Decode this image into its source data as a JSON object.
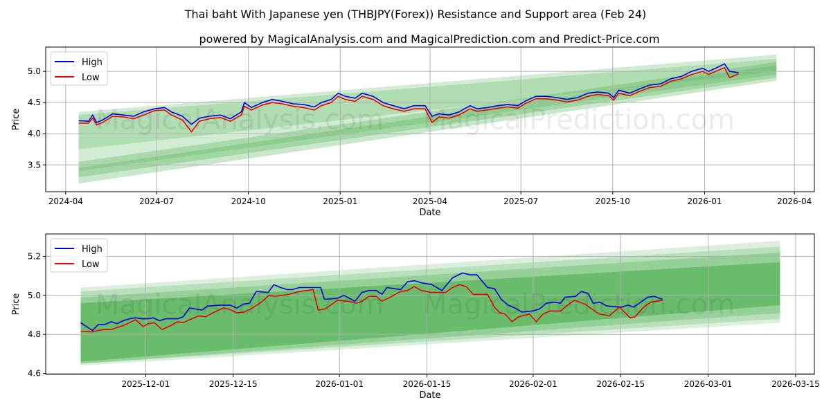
{
  "chart_data": [
    {
      "type": "line",
      "title": "Thai baht With Japanese yen (THBJPY(Forex)) Resistance and Support area (Feb 24)",
      "subtitle": "powered by MagicalAnalysis.com and MagicalPrediction.com and Predict-Price.com",
      "xlabel": "Date",
      "ylabel": "Price",
      "x_origin": "2024-04-01",
      "x_unit": "days since x_origin",
      "xlim": [
        -20,
        750
      ],
      "ylim": [
        3.07,
        5.39
      ],
      "grid": true,
      "legend": "top-left",
      "x_ticks": [
        {
          "label": "2024-04",
          "day": 0
        },
        {
          "label": "2024-07",
          "day": 91
        },
        {
          "label": "2024-10",
          "day": 183
        },
        {
          "label": "2025-01",
          "day": 275
        },
        {
          "label": "2025-04",
          "day": 365
        },
        {
          "label": "2025-07",
          "day": 456
        },
        {
          "label": "2025-10",
          "day": 548
        },
        {
          "label": "2026-01",
          "day": 640
        },
        {
          "label": "2026-04",
          "day": 730
        }
      ],
      "y_ticks": [
        {
          "label": "3.5",
          "value": 3.5
        },
        {
          "label": "4.0",
          "value": 4.0
        },
        {
          "label": "4.5",
          "value": 4.5
        },
        {
          "label": "5.0",
          "value": 5.0
        }
      ],
      "bands": {
        "x_range": [
          13,
          712
        ],
        "color": "#4caf50",
        "items": [
          {
            "top": [
              4.35,
              5.27
            ],
            "bottom": [
              3.75,
              5.0
            ],
            "opacity": 0.25
          },
          {
            "top": [
              4.3,
              5.2
            ],
            "bottom": [
              3.4,
              4.95
            ],
            "opacity": 0.25
          },
          {
            "top": [
              3.55,
              5.15
            ],
            "bottom": [
              3.2,
              4.85
            ],
            "opacity": 0.3
          },
          {
            "top": [
              3.45,
              5.1
            ],
            "bottom": [
              3.3,
              4.9
            ],
            "opacity": 0.3
          }
        ]
      },
      "series": [
        {
          "name": "High",
          "color": "#0000dd",
          "x": [
            13,
            23,
            27,
            31,
            37,
            47,
            58,
            68,
            78,
            89,
            99,
            106,
            117,
            126,
            134,
            144,
            155,
            165,
            176,
            179,
            186,
            197,
            207,
            217,
            228,
            238,
            249,
            256,
            266,
            273,
            280,
            290,
            297,
            308,
            318,
            328,
            339,
            349,
            360,
            367,
            374,
            384,
            394,
            405,
            412,
            422,
            433,
            443,
            453,
            460,
            471,
            481,
            492,
            502,
            513,
            523,
            533,
            544,
            549,
            554,
            565,
            575,
            585,
            596,
            606,
            617,
            627,
            638,
            644,
            651,
            660,
            665,
            674
          ],
          "values": [
            4.21,
            4.2,
            4.3,
            4.18,
            4.22,
            4.32,
            4.3,
            4.28,
            4.35,
            4.4,
            4.42,
            4.35,
            4.28,
            4.15,
            4.25,
            4.28,
            4.3,
            4.24,
            4.35,
            4.5,
            4.42,
            4.5,
            4.55,
            4.52,
            4.48,
            4.47,
            4.43,
            4.5,
            4.55,
            4.65,
            4.6,
            4.57,
            4.65,
            4.6,
            4.5,
            4.45,
            4.4,
            4.45,
            4.45,
            4.28,
            4.32,
            4.3,
            4.35,
            4.45,
            4.4,
            4.42,
            4.45,
            4.47,
            4.45,
            4.52,
            4.6,
            4.6,
            4.58,
            4.55,
            4.58,
            4.65,
            4.67,
            4.65,
            4.58,
            4.7,
            4.65,
            4.72,
            4.78,
            4.8,
            4.88,
            4.92,
            5.0,
            5.05,
            5.0,
            5.05,
            5.12,
            5.0,
            4.98
          ]
        },
        {
          "name": "Low",
          "color": "#ee0000",
          "x": [
            13,
            23,
            27,
            31,
            37,
            47,
            58,
            68,
            78,
            89,
            99,
            106,
            117,
            126,
            134,
            144,
            155,
            165,
            176,
            179,
            186,
            197,
            207,
            217,
            228,
            238,
            249,
            256,
            266,
            273,
            280,
            290,
            297,
            308,
            318,
            328,
            339,
            349,
            360,
            367,
            374,
            384,
            394,
            405,
            412,
            422,
            433,
            443,
            453,
            460,
            471,
            481,
            492,
            502,
            513,
            523,
            533,
            544,
            549,
            554,
            565,
            575,
            585,
            596,
            606,
            617,
            627,
            638,
            644,
            651,
            660,
            665,
            674
          ],
          "values": [
            4.17,
            4.17,
            4.25,
            4.14,
            4.18,
            4.28,
            4.27,
            4.24,
            4.3,
            4.37,
            4.38,
            4.3,
            4.22,
            4.03,
            4.2,
            4.24,
            4.26,
            4.2,
            4.3,
            4.44,
            4.38,
            4.46,
            4.5,
            4.48,
            4.44,
            4.42,
            4.38,
            4.45,
            4.5,
            4.6,
            4.55,
            4.52,
            4.6,
            4.55,
            4.45,
            4.4,
            4.36,
            4.4,
            4.4,
            4.18,
            4.27,
            4.25,
            4.3,
            4.4,
            4.36,
            4.38,
            4.41,
            4.43,
            4.41,
            4.48,
            4.56,
            4.56,
            4.54,
            4.51,
            4.54,
            4.6,
            4.63,
            4.61,
            4.54,
            4.65,
            4.61,
            4.68,
            4.74,
            4.76,
            4.84,
            4.88,
            4.95,
            5.0,
            4.95,
            5.0,
            5.06,
            4.9,
            4.96
          ]
        }
      ]
    },
    {
      "type": "line",
      "xlabel": "Date",
      "ylabel": "Price",
      "x_origin": "2025-12-01",
      "x_unit": "days since x_origin",
      "xlim": [
        -16,
        107
      ],
      "ylim": [
        4.595,
        5.315
      ],
      "grid": true,
      "legend": "top-left",
      "x_ticks": [
        {
          "label": "2025-12-01",
          "day": 0
        },
        {
          "label": "2025-12-15",
          "day": 14
        },
        {
          "label": "2026-01-01",
          "day": 31
        },
        {
          "label": "2026-01-15",
          "day": 45
        },
        {
          "label": "2026-02-01",
          "day": 62
        },
        {
          "label": "2026-02-15",
          "day": 76
        },
        {
          "label": "2026-03-01",
          "day": 90
        },
        {
          "label": "2026-03-15",
          "day": 104
        }
      ],
      "y_ticks": [
        {
          "label": "4.6",
          "value": 4.6
        },
        {
          "label": "4.8",
          "value": 4.8
        },
        {
          "label": "5.0",
          "value": 5.0
        },
        {
          "label": "5.2",
          "value": 5.2
        }
      ],
      "bands": {
        "x_range": [
          -10.4,
          101.5
        ],
        "color": "#4caf50",
        "items": [
          {
            "top": [
              5.04,
              5.28
            ],
            "bottom": [
              4.64,
              4.86
            ],
            "opacity": 0.2
          },
          {
            "top": [
              5.02,
              5.25
            ],
            "bottom": [
              4.65,
              4.88
            ],
            "opacity": 0.25
          },
          {
            "top": [
              4.99,
              5.22
            ],
            "bottom": [
              4.65,
              4.91
            ],
            "opacity": 0.3
          },
          {
            "top": [
              4.96,
              5.17
            ],
            "bottom": [
              4.66,
              4.95
            ],
            "opacity": 0.6
          }
        ]
      },
      "series": [
        {
          "name": "High",
          "color": "#0000dd",
          "x": [
            -10.4,
            -8.5,
            -7.6,
            -6.6,
            -5.5,
            -4.6,
            -3.6,
            -2.6,
            -1.6,
            -0.7,
            0.4,
            1.2,
            2.2,
            3.2,
            5.1,
            6.0,
            7.0,
            9.0,
            9.9,
            11.9,
            13.5,
            14.6,
            15.6,
            16.6,
            17.7,
            19.6,
            20.5,
            21.6,
            22.6,
            23.5,
            24.6,
            28.0,
            28.6,
            30.7,
            31.7,
            33.5,
            34.6,
            35.7,
            36.9,
            37.8,
            38.6,
            40.8,
            41.9,
            43.0,
            44.1,
            45.8,
            47.4,
            49.1,
            50.7,
            51.9,
            53.0,
            54.7,
            55.8,
            56.9,
            58.0,
            59.1,
            60.2,
            61.9,
            63.0,
            64.1,
            65.3,
            66.4,
            67.1,
            68.8,
            69.7,
            70.8,
            71.6,
            72.7,
            73.8,
            76.2,
            77.2,
            78.1,
            79.2,
            80.3,
            81.4,
            82.7
          ],
          "values": [
            4.86,
            4.82,
            4.85,
            4.85,
            4.865,
            4.855,
            4.87,
            4.88,
            4.885,
            4.88,
            4.88,
            4.885,
            4.87,
            4.88,
            4.88,
            4.89,
            4.935,
            4.925,
            4.945,
            4.95,
            4.95,
            4.935,
            4.955,
            4.96,
            5.02,
            5.015,
            5.055,
            5.04,
            5.03,
            5.03,
            5.04,
            5.04,
            4.98,
            4.985,
            5.0,
            4.97,
            5.015,
            5.025,
            5.025,
            5.005,
            5.04,
            5.03,
            5.07,
            5.075,
            5.065,
            5.055,
            5.025,
            5.09,
            5.115,
            5.105,
            5.105,
            5.04,
            5.035,
            4.98,
            4.95,
            4.935,
            4.915,
            4.92,
            4.93,
            4.96,
            4.965,
            4.96,
            4.99,
            4.995,
            5.02,
            5.01,
            4.96,
            4.965,
            4.945,
            4.94,
            4.95,
            4.94,
            4.965,
            4.99,
            4.995,
            4.98
          ]
        },
        {
          "name": "Low",
          "color": "#ee0000",
          "x": [
            -10.4,
            -8.5,
            -7.6,
            -6.6,
            -5.5,
            -4.6,
            -3.6,
            -2.6,
            -1.6,
            -0.4,
            0.4,
            1.4,
            2.6,
            4.0,
            5.1,
            6.0,
            7.0,
            8.5,
            9.6,
            10.7,
            12.4,
            13.3,
            14.6,
            15.7,
            16.8,
            18.5,
            19.7,
            20.7,
            22.9,
            24.6,
            25.7,
            26.8,
            27.6,
            28.7,
            29.6,
            30.7,
            32.4,
            33.7,
            34.6,
            35.7,
            36.9,
            37.8,
            39.1,
            40.8,
            41.9,
            43.0,
            44.1,
            45.8,
            48.0,
            49.1,
            50.2,
            51.3,
            52.4,
            54.7,
            55.8,
            56.7,
            57.5,
            58.6,
            59.7,
            61.4,
            62.5,
            63.6,
            64.7,
            66.4,
            67.5,
            68.6,
            70.3,
            71.4,
            72.5,
            74.2,
            75.8,
            77.5,
            78.3,
            79.7,
            80.8,
            82.7
          ],
          "values": [
            4.815,
            4.813,
            4.82,
            4.825,
            4.825,
            4.835,
            4.845,
            4.86,
            4.875,
            4.84,
            4.855,
            4.86,
            4.825,
            4.845,
            4.865,
            4.86,
            4.875,
            4.895,
            4.89,
            4.91,
            4.935,
            4.93,
            4.91,
            4.915,
            4.93,
            4.965,
            5.0,
            4.995,
            5.005,
            5.02,
            5.025,
            5.03,
            4.925,
            4.93,
            4.95,
            4.975,
            4.97,
            4.96,
            4.97,
            4.995,
            4.995,
            4.97,
            4.99,
            5.02,
            5.025,
            5.045,
            5.025,
            5.015,
            5.015,
            5.04,
            5.055,
            5.045,
            5.005,
            5.005,
            4.94,
            4.91,
            4.905,
            4.865,
            4.89,
            4.905,
            4.865,
            4.905,
            4.92,
            4.92,
            4.95,
            4.975,
            4.955,
            4.93,
            4.905,
            4.895,
            4.94,
            4.885,
            4.89,
            4.94,
            4.965,
            4.975
          ]
        }
      ]
    }
  ],
  "watermarks": [
    "MagicalAnalysis.com",
    "MagicalPrediction.com"
  ]
}
